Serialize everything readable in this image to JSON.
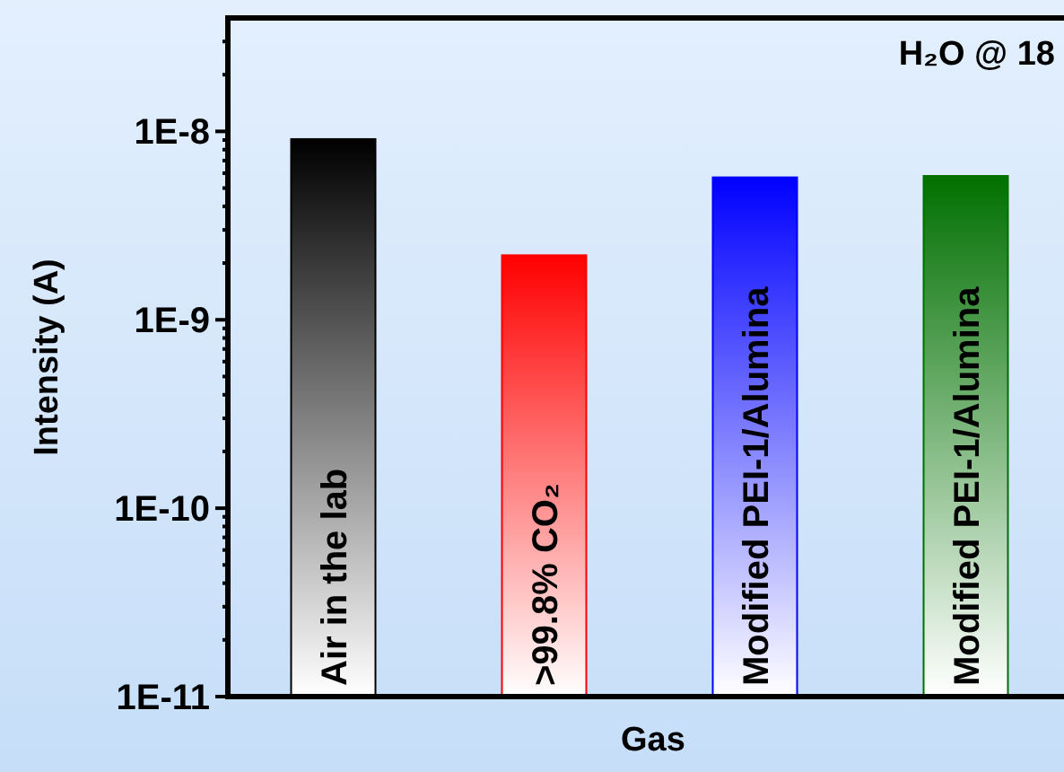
{
  "chart_data": {
    "type": "bar",
    "xlabel": "Gas",
    "ylabel": "Intensity (A)",
    "categories": [
      "Air in the lab",
      ">99.8% CO₂",
      "Modified PEI-1/Alumina",
      "Modified PEI-1/Alumina"
    ],
    "values": [
      9.1e-09,
      2.2e-09,
      5.7e-09,
      5.8e-09
    ],
    "colors": [
      "#000000",
      "#ff0000",
      "#0000ff",
      "#007000"
    ],
    "log": true,
    "ylim": [
      1e-11,
      4e-08
    ],
    "yticks": [
      {
        "value": 1e-11,
        "label": "1E-11"
      },
      {
        "value": 2e-11,
        "label": null
      },
      {
        "value": 3e-11,
        "label": null
      },
      {
        "value": 4e-11,
        "label": null
      },
      {
        "value": 5e-11,
        "label": null
      },
      {
        "value": 6e-11,
        "label": null
      },
      {
        "value": 7e-11,
        "label": null
      },
      {
        "value": 8e-11,
        "label": null
      },
      {
        "value": 9e-11,
        "label": null
      },
      {
        "value": 1e-10,
        "label": "1E-10"
      },
      {
        "value": 2e-10,
        "label": null
      },
      {
        "value": 3e-10,
        "label": null
      },
      {
        "value": 4e-10,
        "label": null
      },
      {
        "value": 5e-10,
        "label": null
      },
      {
        "value": 6e-10,
        "label": null
      },
      {
        "value": 7e-10,
        "label": null
      },
      {
        "value": 8e-10,
        "label": null
      },
      {
        "value": 9e-10,
        "label": null
      },
      {
        "value": 1e-09,
        "label": "1E-9"
      },
      {
        "value": 2e-09,
        "label": null
      },
      {
        "value": 3e-09,
        "label": null
      },
      {
        "value": 4e-09,
        "label": null
      },
      {
        "value": 5e-09,
        "label": null
      },
      {
        "value": 6e-09,
        "label": null
      },
      {
        "value": 7e-09,
        "label": null
      },
      {
        "value": 8e-09,
        "label": null
      },
      {
        "value": 9e-09,
        "label": null
      },
      {
        "value": 1e-08,
        "label": "1E-8"
      },
      {
        "value": 2e-08,
        "label": null
      },
      {
        "value": 3e-08,
        "label": null
      }
    ],
    "annotations": [
      "H₂O @ 18"
    ],
    "grid": false
  }
}
